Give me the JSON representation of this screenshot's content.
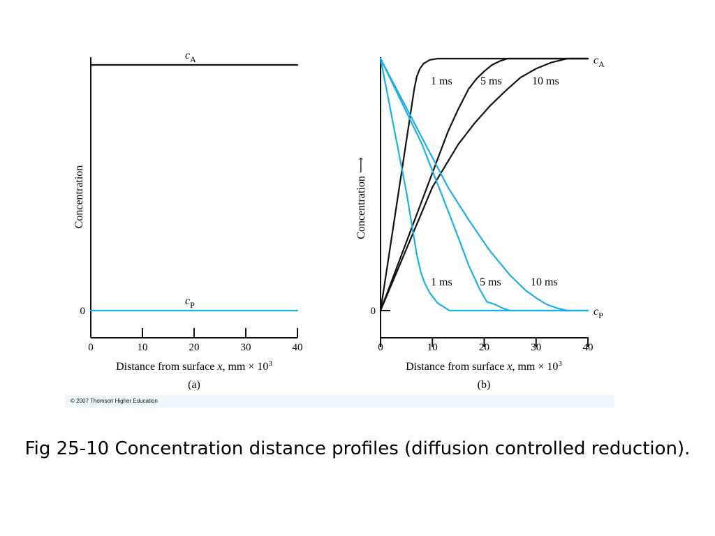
{
  "caption": "Fig 25-10 Concentration distance profiles (diffusion controlled reduction).",
  "copyright": "© 2007 Thomson Higher Education",
  "colors": {
    "black_series": "#111111",
    "blue_series": "#1eaee6",
    "axis": "#111111",
    "credit_bar": "#eef6f9"
  },
  "chart_data": [
    {
      "type": "line",
      "panel_label": "(a)",
      "xlabel_text": "Distance from surface ",
      "xlabel_var": "x",
      "xlabel_units": ", mm × 10",
      "xlabel_exp": "3",
      "ylabel": "Concentration",
      "xlim": [
        0,
        40
      ],
      "xticks": [
        "0",
        "10",
        "20",
        "30",
        "40"
      ],
      "yticks": [
        "0"
      ],
      "series": [
        {
          "name": "A",
          "label_main": "c",
          "label_sub": "A",
          "color": "#111111",
          "x": [
            0,
            40
          ],
          "y": [
            1,
            1
          ]
        },
        {
          "name": "P",
          "label_main": "c",
          "label_sub": "P",
          "color": "#1eaee6",
          "x": [
            0,
            40
          ],
          "y": [
            0,
            0
          ]
        }
      ]
    },
    {
      "type": "line",
      "panel_label": "(b)",
      "xlabel_text": "Distance from surface ",
      "xlabel_var": "x",
      "xlabel_units": ", mm × 10",
      "xlabel_exp": "3",
      "ylabel": "Concentration ⟶",
      "xlim": [
        0,
        40
      ],
      "xticks": [
        "0",
        "10",
        "20",
        "30",
        "40"
      ],
      "yticks": [
        "0"
      ],
      "end_labels": [
        {
          "main": "c",
          "sub": "A"
        },
        {
          "main": "c",
          "sub": "P"
        }
      ],
      "series": [
        {
          "name": "1 ms",
          "group": "A",
          "color": "#111111",
          "x": [
            0,
            6.5,
            7.0,
            7.6,
            8.3,
            9.5,
            11,
            13,
            40
          ],
          "y": [
            0,
            0.88,
            0.93,
            0.96,
            0.98,
            0.995,
            1,
            1,
            1
          ]
        },
        {
          "name": "5 ms",
          "group": "A",
          "color": "#111111",
          "x": [
            0,
            13,
            15,
            17,
            18.5,
            20,
            21.5,
            23,
            24.5,
            40
          ],
          "y": [
            0,
            0.71,
            0.8,
            0.88,
            0.92,
            0.95,
            0.975,
            0.99,
            1,
            1
          ]
        },
        {
          "name": "10 ms",
          "group": "A",
          "color": "#111111",
          "x": [
            0,
            10,
            15,
            18,
            21,
            24,
            27,
            30,
            33,
            36,
            38,
            40
          ],
          "y": [
            0,
            0.49,
            0.66,
            0.74,
            0.81,
            0.87,
            0.925,
            0.96,
            0.985,
            1,
            1,
            1
          ]
        },
        {
          "name": "1 ms",
          "group": "P",
          "color": "#1eaee6",
          "x": [
            0,
            5,
            7.0,
            7.8,
            8.5,
            9.5,
            11,
            13.3,
            40
          ],
          "y": [
            1,
            0.47,
            0.22,
            0.15,
            0.11,
            0.07,
            0.03,
            0,
            0
          ]
        },
        {
          "name": "5 ms",
          "group": "P",
          "color": "#1eaee6",
          "x": [
            0,
            8,
            12,
            15,
            17,
            19,
            20.5,
            22,
            23.5,
            25,
            40
          ],
          "y": [
            1,
            0.66,
            0.45,
            0.29,
            0.18,
            0.09,
            0.035,
            0.025,
            0.01,
            0,
            0
          ]
        },
        {
          "name": "10 ms",
          "group": "P",
          "color": "#1eaee6",
          "x": [
            0,
            13,
            17,
            21,
            25,
            28,
            30,
            32,
            34,
            36,
            40
          ],
          "y": [
            1,
            0.49,
            0.36,
            0.24,
            0.14,
            0.08,
            0.05,
            0.025,
            0.01,
            0,
            0
          ]
        }
      ]
    }
  ]
}
